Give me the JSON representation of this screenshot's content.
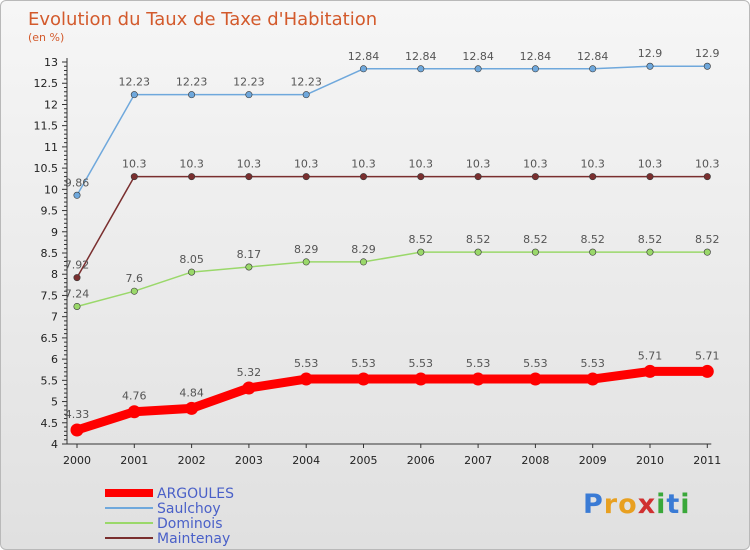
{
  "chart_data": {
    "type": "line",
    "title": "Evolution du Taux de Taxe d'Habitation",
    "subtitle": "(en %)",
    "x": [
      "2000",
      "2001",
      "2002",
      "2003",
      "2004",
      "2005",
      "2006",
      "2007",
      "2008",
      "2009",
      "2010",
      "2011"
    ],
    "ylim": [
      4,
      13
    ],
    "yticks": [
      "4",
      "4.5",
      "5",
      "5.5",
      "6",
      "6.5",
      "7",
      "7.5",
      "8",
      "8.5",
      "9",
      "9.5",
      "10",
      "10.5",
      "11",
      "11.5",
      "12",
      "12.5",
      "13"
    ],
    "grid": false,
    "series": [
      {
        "name": "ARGOULES",
        "color": "#ff0000",
        "values": [
          4.33,
          4.76,
          4.84,
          5.32,
          5.53,
          5.53,
          5.53,
          5.53,
          5.53,
          5.53,
          5.71,
          5.71
        ],
        "labels": [
          "4.33",
          "4.76",
          "4.84",
          "5.32",
          "5.53",
          "5.53",
          "5.53",
          "5.53",
          "5.53",
          "5.53",
          "5.71",
          "5.71"
        ]
      },
      {
        "name": "Saulchoy",
        "color": "#6fa8dc",
        "values": [
          9.86,
          12.23,
          12.23,
          12.23,
          12.23,
          12.84,
          12.84,
          12.84,
          12.84,
          12.84,
          12.9,
          12.9
        ],
        "labels": [
          "9.86",
          "12.23",
          "12.23",
          "12.23",
          "12.23",
          "12.84",
          "12.84",
          "12.84",
          "12.84",
          "12.84",
          "12.9",
          "12.9"
        ]
      },
      {
        "name": "Dominois",
        "color": "#9ad86a",
        "values": [
          7.24,
          7.6,
          8.05,
          8.17,
          8.29,
          8.29,
          8.52,
          8.52,
          8.52,
          8.52,
          8.52,
          8.52
        ],
        "labels": [
          "7.24",
          "7.6",
          "8.05",
          "8.17",
          "8.29",
          "8.29",
          "8.52",
          "8.52",
          "8.52",
          "8.52",
          "8.52",
          "8.52"
        ]
      },
      {
        "name": "Maintenay",
        "color": "#7a2f2f",
        "values": [
          7.92,
          10.3,
          10.3,
          10.3,
          10.3,
          10.3,
          10.3,
          10.3,
          10.3,
          10.3,
          10.3,
          10.3
        ],
        "labels": [
          "7.92",
          "10.3",
          "10.3",
          "10.3",
          "10.3",
          "10.3",
          "10.3",
          "10.3",
          "10.3",
          "10.3",
          "10.3",
          "10.3"
        ]
      }
    ]
  },
  "legend": [
    {
      "name": "ARGOULES",
      "color": "#ff0000"
    },
    {
      "name": "Saulchoy",
      "color": "#6fa8dc"
    },
    {
      "name": "Dominois",
      "color": "#9ad86a"
    },
    {
      "name": "Maintenay",
      "color": "#7a2f2f"
    }
  ],
  "legend_text_color": "#4a60c8",
  "logo": {
    "letters": [
      "P",
      "r",
      "o",
      "x",
      "i",
      "t",
      "i"
    ],
    "colors": [
      "#3a7bd5",
      "#e8a020",
      "#e8a020",
      "#d03030",
      "#3aa83a",
      "#3a7bd5",
      "#3aa83a"
    ]
  }
}
